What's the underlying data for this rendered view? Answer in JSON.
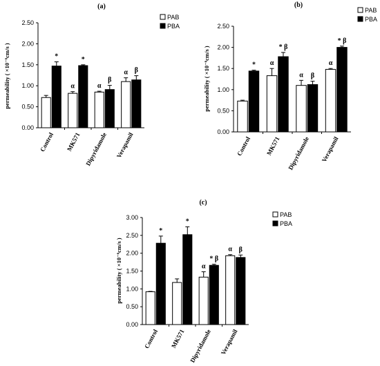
{
  "chart_data": [
    {
      "type": "bar",
      "panel_label": "(a)",
      "ylabel": "permeability ( ×10⁻⁶cm/s )",
      "categories": [
        "Control",
        "MK571",
        "Dipyridamole",
        "Verapamil"
      ],
      "ylim": [
        0,
        2.5
      ],
      "yticks": [
        "0.00",
        "0.50",
        "1.00",
        "1.50",
        "2.00",
        "2.50"
      ],
      "legend": [
        "PAB",
        "PBA"
      ],
      "legend_position": "top-right",
      "series": [
        {
          "name": "PAB",
          "color": "#ffffff",
          "values": [
            0.72,
            0.82,
            0.85,
            1.1
          ],
          "errors": [
            0.05,
            0.04,
            0.02,
            0.09
          ],
          "annotations": [
            "",
            "α",
            "α",
            "α"
          ]
        },
        {
          "name": "PBA",
          "color": "#000000",
          "values": [
            1.47,
            1.48,
            0.91,
            1.14
          ],
          "errors": [
            0.1,
            0.02,
            0.1,
            0.1
          ],
          "annotations": [
            "*",
            "*",
            "β",
            "β"
          ]
        }
      ]
    },
    {
      "type": "bar",
      "panel_label": "(b)",
      "ylabel": "permeability ( ×10⁻⁶cm/s )",
      "categories": [
        "Control",
        "MK571",
        "Dipyridamole",
        "Verapamil"
      ],
      "ylim": [
        0,
        2.5
      ],
      "yticks": [
        "0.00",
        "0.50",
        "1.00",
        "1.50",
        "2.00",
        "2.50"
      ],
      "legend": [
        "PAB",
        "PBA"
      ],
      "legend_position": "top-right",
      "series": [
        {
          "name": "PAB",
          "color": "#ffffff",
          "values": [
            0.73,
            1.33,
            1.1,
            1.48
          ],
          "errors": [
            0.02,
            0.17,
            0.12,
            0.02
          ],
          "annotations": [
            "",
            "α",
            "α",
            "α"
          ]
        },
        {
          "name": "PBA",
          "color": "#000000",
          "values": [
            1.44,
            1.78,
            1.12,
            2.0
          ],
          "errors": [
            0.02,
            0.1,
            0.08,
            0.03
          ],
          "annotations": [
            "*",
            "* β",
            "β",
            "* β"
          ]
        }
      ]
    },
    {
      "type": "bar",
      "panel_label": "(c)",
      "ylabel": "permeability ( ×10⁻⁶cm/s )",
      "categories": [
        "Control",
        "MK571",
        "Dipyridamole",
        "Verapamil"
      ],
      "ylim": [
        0,
        3.0
      ],
      "yticks": [
        "0.00",
        "0.50",
        "1.00",
        "1.50",
        "2.00",
        "2.50",
        "3.00"
      ],
      "legend": [
        "PAB",
        "PBA"
      ],
      "legend_position": "top-right",
      "series": [
        {
          "name": "PAB",
          "color": "#ffffff",
          "values": [
            0.92,
            1.18,
            1.33,
            1.93
          ],
          "errors": [
            0.01,
            0.1,
            0.15,
            0.03
          ],
          "annotations": [
            "",
            "",
            "α",
            "α"
          ]
        },
        {
          "name": "PBA",
          "color": "#000000",
          "values": [
            2.28,
            2.52,
            1.66,
            1.88
          ],
          "errors": [
            0.2,
            0.22,
            0.03,
            0.07
          ],
          "annotations": [
            "*",
            "*",
            "* β",
            "β"
          ]
        }
      ]
    }
  ]
}
